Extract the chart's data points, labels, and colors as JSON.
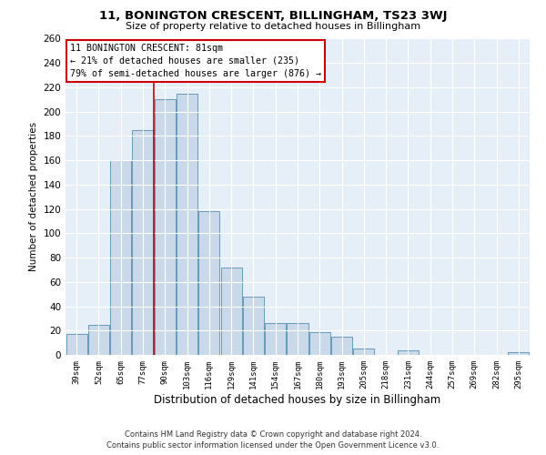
{
  "title": "11, BONINGTON CRESCENT, BILLINGHAM, TS23 3WJ",
  "subtitle": "Size of property relative to detached houses in Billingham",
  "xlabel": "Distribution of detached houses by size in Billingham",
  "ylabel": "Number of detached properties",
  "bar_labels": [
    "39sqm",
    "52sqm",
    "65sqm",
    "77sqm",
    "90sqm",
    "103sqm",
    "116sqm",
    "129sqm",
    "141sqm",
    "154sqm",
    "167sqm",
    "180sqm",
    "193sqm",
    "205sqm",
    "218sqm",
    "231sqm",
    "244sqm",
    "257sqm",
    "269sqm",
    "282sqm",
    "295sqm"
  ],
  "bar_values": [
    17,
    25,
    160,
    185,
    210,
    215,
    118,
    72,
    48,
    26,
    26,
    19,
    15,
    5,
    0,
    4,
    0,
    0,
    0,
    0,
    2
  ],
  "bar_color": "#c9d9ea",
  "bar_edge_color": "#6699bb",
  "vline_x": 3.5,
  "vline_color": "#cc0000",
  "annotation_title": "11 BONINGTON CRESCENT: 81sqm",
  "annotation_line1": "← 21% of detached houses are smaller (235)",
  "annotation_line2": "79% of semi-detached houses are larger (876) →",
  "annotation_box_color": "#ffffff",
  "annotation_box_edge": "#cc0000",
  "ylim": [
    0,
    260
  ],
  "yticks": [
    0,
    20,
    40,
    60,
    80,
    100,
    120,
    140,
    160,
    180,
    200,
    220,
    240,
    260
  ],
  "footer_line1": "Contains HM Land Registry data © Crown copyright and database right 2024.",
  "footer_line2": "Contains public sector information licensed under the Open Government Licence v3.0.",
  "bg_color": "#ffffff",
  "plot_bg_color": "#e6eff7"
}
